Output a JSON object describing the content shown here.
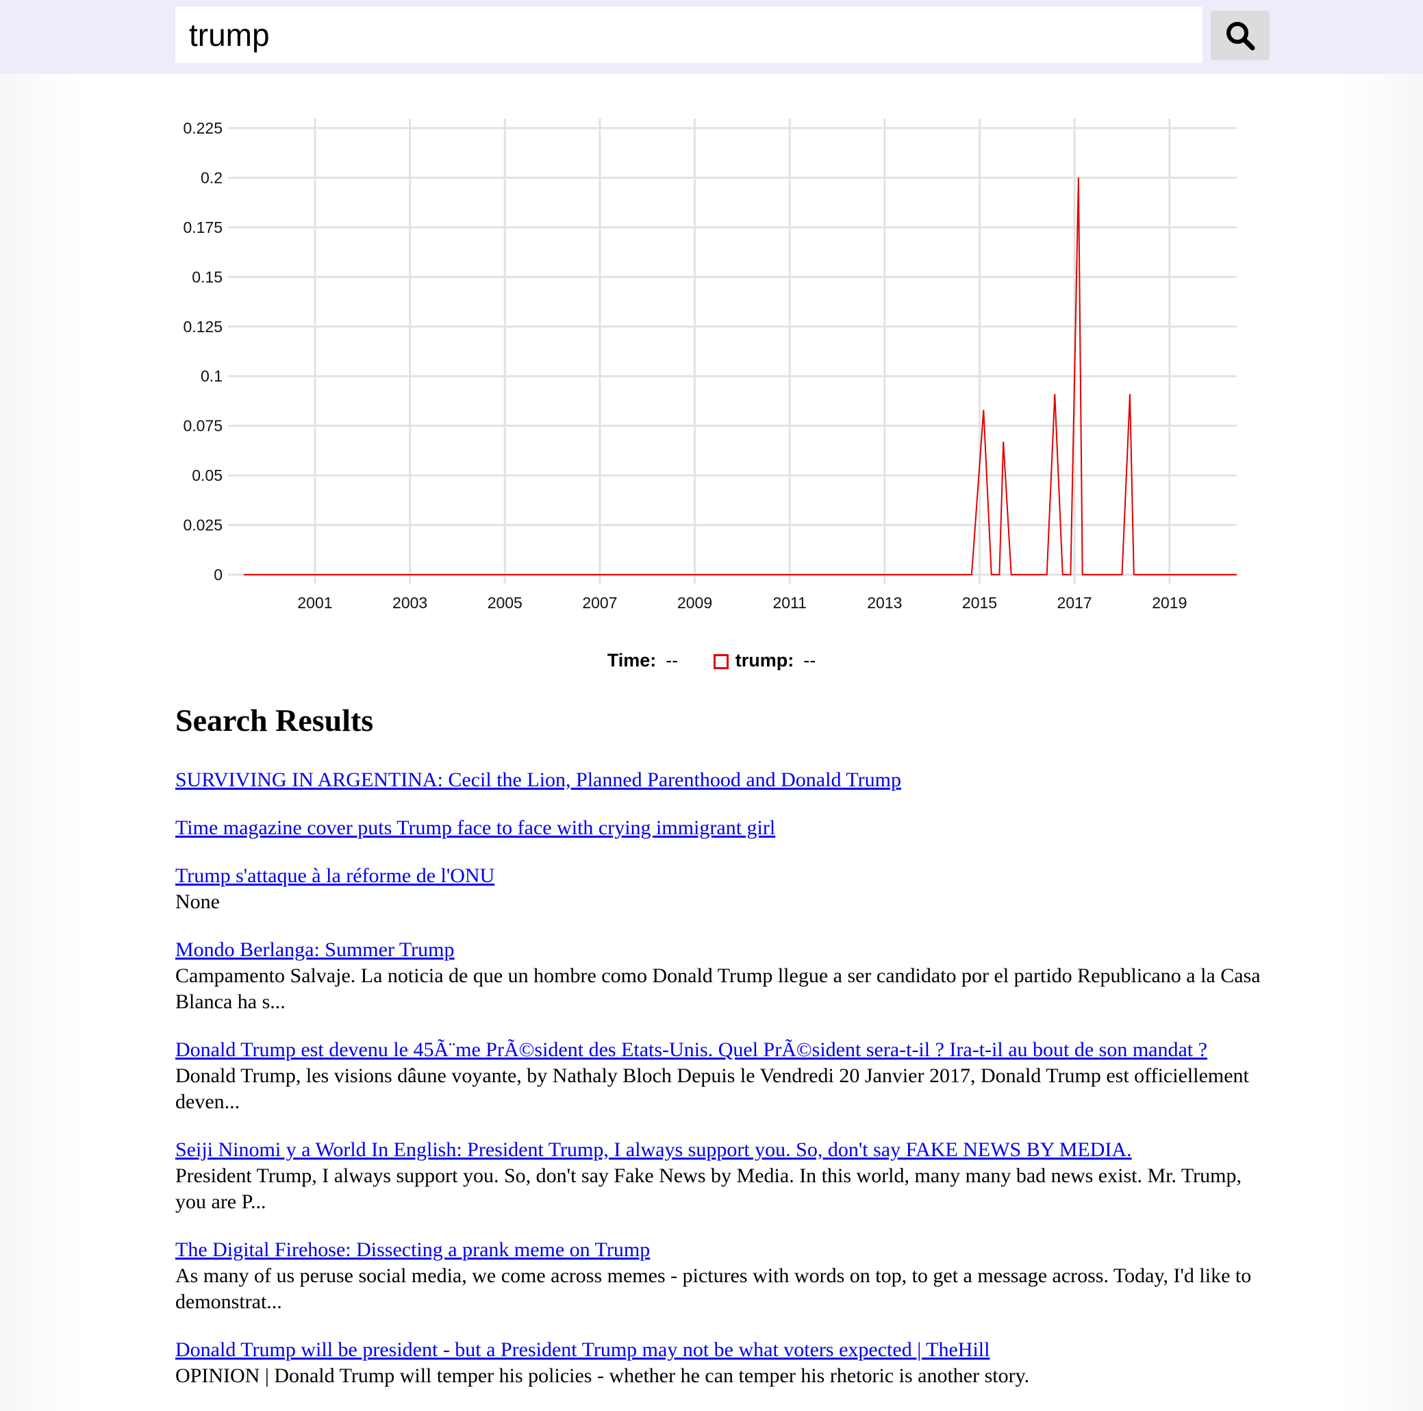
{
  "search": {
    "query": "trump",
    "button_icon": "search-icon"
  },
  "chart_data": {
    "type": "line",
    "series": [
      {
        "name": "trump",
        "color": "#e00000",
        "points": [
          {
            "x": "2000-01",
            "y": 0
          },
          {
            "x": "2015-05",
            "y": 0
          },
          {
            "x": "2015-08",
            "y": 0.083
          },
          {
            "x": "2015-10",
            "y": 0
          },
          {
            "x": "2015-12",
            "y": 0
          },
          {
            "x": "2016-01",
            "y": 0.067
          },
          {
            "x": "2016-03",
            "y": 0
          },
          {
            "x": "2016-12",
            "y": 0
          },
          {
            "x": "2017-02",
            "y": 0.091
          },
          {
            "x": "2017-04",
            "y": 0
          },
          {
            "x": "2017-06",
            "y": 0
          },
          {
            "x": "2017-08",
            "y": 0.2
          },
          {
            "x": "2017-09",
            "y": 0
          },
          {
            "x": "2018-07",
            "y": 0
          },
          {
            "x": "2018-09",
            "y": 0.091
          },
          {
            "x": "2018-10",
            "y": 0
          },
          {
            "x": "2020-12",
            "y": 0
          }
        ]
      }
    ],
    "x_ticks": [
      "2001",
      "2003",
      "2005",
      "2007",
      "2009",
      "2011",
      "2013",
      "2015",
      "2017",
      "2019"
    ],
    "y_ticks": [
      "0",
      "0.025",
      "0.05",
      "0.075",
      "0.1",
      "0.125",
      "0.15",
      "0.175",
      "0.2",
      "0.225"
    ],
    "xlim": [
      "2000-01",
      "2020-12"
    ],
    "ylim": [
      0,
      0.225
    ],
    "grid": true,
    "legend_position": "bottom",
    "gridline_color": "#e2e2e2"
  },
  "legend": {
    "time_label": "Time:",
    "time_value": "--",
    "series_label": "trump:",
    "series_value": "--"
  },
  "results": {
    "title": "Search Results",
    "items": [
      {
        "title": "SURVIVING IN ARGENTINA: Cecil the Lion, Planned Parenthood and Donald Trump",
        "snippet": ""
      },
      {
        "title": "Time magazine cover puts Trump face to face with crying immigrant girl",
        "snippet": ""
      },
      {
        "title": "Trump s'attaque à la réforme de l'ONU",
        "snippet": "None"
      },
      {
        "title": "Mondo Berlanga: Summer Trump",
        "snippet": "Campamento Salvaje. La noticia de que un hombre como Donald Trump llegue a ser candidato por el partido Republicano a la Casa Blanca ha s..."
      },
      {
        "title": "Donald Trump est devenu le 45Ã¨me PrÃ©sident des Etats-Unis. Quel PrÃ©sident sera-t-il ? Ira-t-il au bout de son mandat ?",
        "snippet": "Donald Trump, les visions dâune voyante, by Nathaly Bloch Depuis le Vendredi 20 Janvier 2017, Donald Trump est officiellement deven..."
      },
      {
        "title": "Seiji Ninomi y a World In English: President Trump, I always support you. So, don't say FAKE NEWS BY MEDIA.",
        "snippet": "President Trump, I always support you. So, don't say Fake News by Media. In this world, many many bad news exist. Mr. Trump, you are P..."
      },
      {
        "title": "The Digital Firehose: Dissecting a prank meme on Trump",
        "snippet": "As many of us peruse social media, we come across memes - pictures with words on top, to get a message across. Today, I'd like to demonstrat..."
      },
      {
        "title": "Donald Trump will be president - but a President Trump may not be what voters expected | TheHill",
        "snippet": "OPINION | Donald Trump will temper his policies - whether he can temper his rhetoric is another story."
      }
    ]
  }
}
